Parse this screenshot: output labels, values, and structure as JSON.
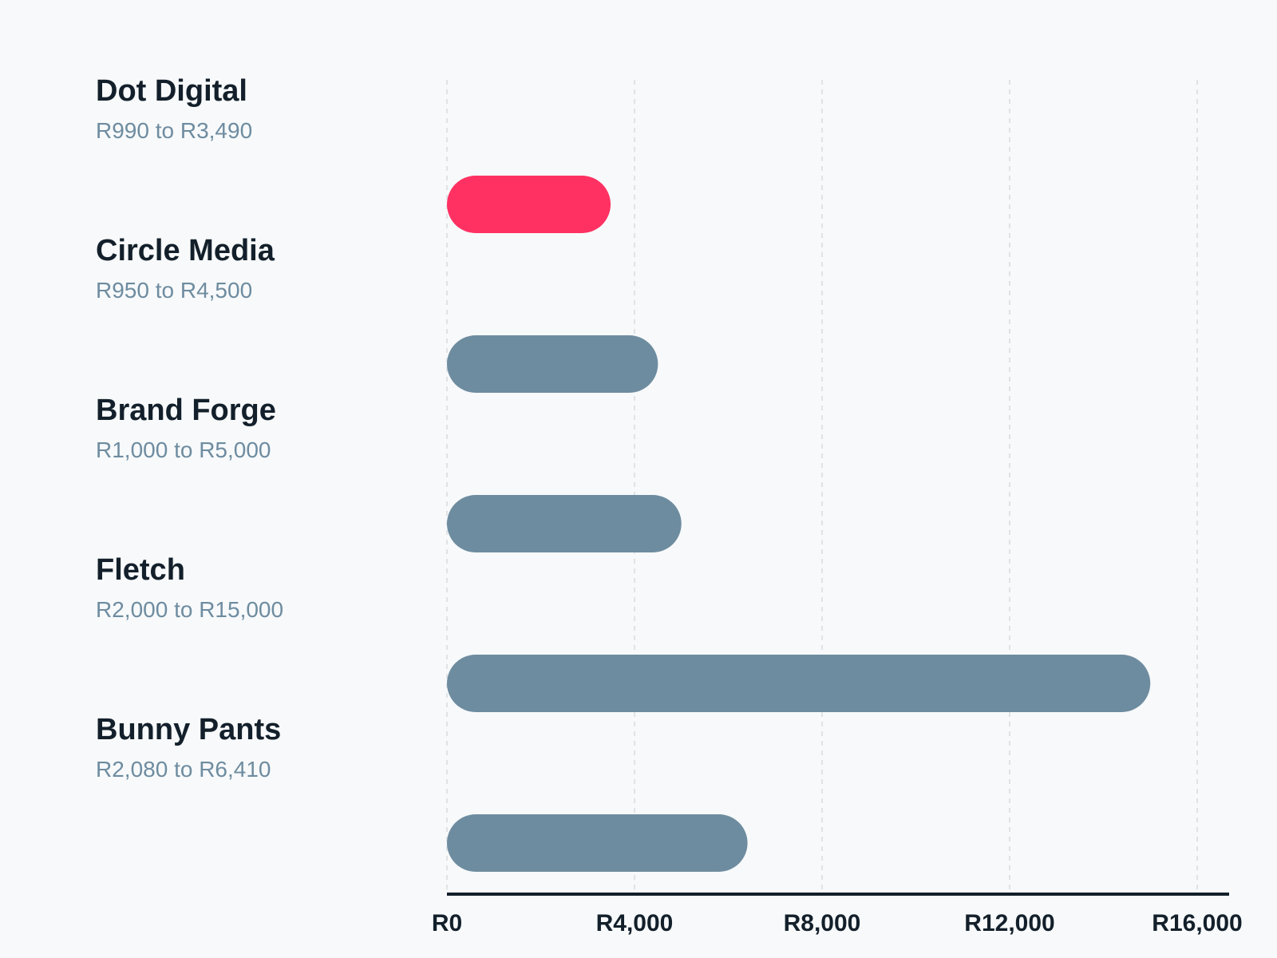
{
  "chart_data": {
    "type": "bar",
    "orientation": "horizontal",
    "categories": [
      "Dot Digital",
      "Circle Media",
      "Brand Forge",
      "Fletch",
      "Bunny Pants"
    ],
    "range_labels": [
      "R990 to R3,490",
      "R950 to R4,500",
      "R1,000 to R5,000",
      "R2,000 to R15,000",
      "R2,080 to R6,410"
    ],
    "values": [
      3490,
      4500,
      5000,
      15000,
      6410
    ],
    "highlight_index": 0,
    "xlim": [
      0,
      16000
    ],
    "ticks": [
      0,
      4000,
      8000,
      12000,
      16000
    ],
    "tick_labels": [
      "R0",
      "R4,000",
      "R8,000",
      "R12,000",
      "R16,000"
    ],
    "grid": true,
    "colors": {
      "highlight": "#ff3162",
      "default": "#6e8ca0",
      "axis": "#13202b",
      "grid": "#d9dcdf"
    }
  }
}
